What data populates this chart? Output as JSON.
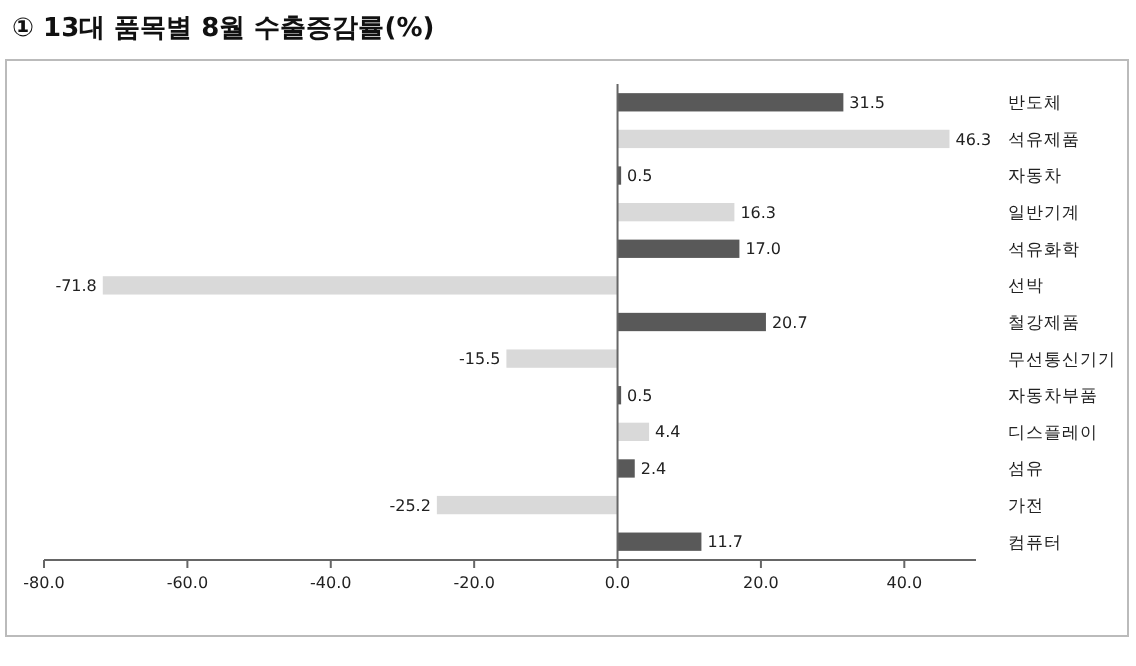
{
  "chart_data": {
    "type": "bar",
    "orientation": "horizontal",
    "title": "① 13대 품목별 8월 수출증감률(%)",
    "categories": [
      "반도체",
      "석유제품",
      "자동차",
      "일반기계",
      "석유화학",
      "선박",
      "철강제품",
      "무선통신기기",
      "자동차부품",
      "디스플레이",
      "섬유",
      "가전",
      "컴퓨터"
    ],
    "values": [
      31.5,
      46.3,
      0.5,
      16.3,
      17.0,
      -71.8,
      20.7,
      -15.5,
      0.5,
      4.4,
      2.4,
      -25.2,
      11.7
    ],
    "colors": [
      "#595959",
      "#d9d9d9",
      "#595959",
      "#d9d9d9",
      "#595959",
      "#d9d9d9",
      "#595959",
      "#d9d9d9",
      "#595959",
      "#d9d9d9",
      "#595959",
      "#d9d9d9",
      "#595959"
    ],
    "value_labels": [
      "31.5",
      "46.3",
      "0.5",
      "16.3",
      "17.0",
      "-71.8",
      "20.7",
      "-15.5",
      "0.5",
      "4.4",
      "2.4",
      "-25.2",
      "11.7"
    ],
    "xlim": [
      -80,
      50
    ],
    "xticks": [
      {
        "value": -80,
        "label": "-80.0"
      },
      {
        "value": -60,
        "label": "-60.0"
      },
      {
        "value": -40,
        "label": "-40.0"
      },
      {
        "value": -20,
        "label": "-20.0"
      },
      {
        "value": 0,
        "label": "0.0"
      },
      {
        "value": 20,
        "label": "20.0"
      },
      {
        "value": 40,
        "label": "40.0"
      }
    ]
  }
}
